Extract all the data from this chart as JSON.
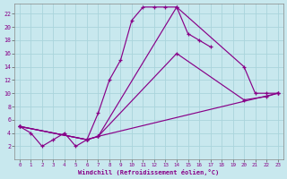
{
  "xlabel": "Windchill (Refroidissement éolien,°C)",
  "bg_color": "#c8e8ee",
  "grid_color": "#b0d8e0",
  "line_color": "#880088",
  "xlim": [
    -0.5,
    23.5
  ],
  "ylim": [
    0,
    23.5
  ],
  "yticks": [
    2,
    4,
    6,
    8,
    10,
    12,
    14,
    16,
    18,
    20,
    22
  ],
  "xticks": [
    0,
    1,
    2,
    3,
    4,
    5,
    6,
    7,
    8,
    9,
    10,
    11,
    12,
    13,
    14,
    15,
    16,
    17,
    18,
    19,
    20,
    21,
    22,
    23
  ],
  "series": [
    {
      "x": [
        0,
        1,
        2,
        3,
        4,
        5,
        6,
        7,
        8,
        9,
        10,
        11,
        12,
        13,
        14,
        15,
        16,
        17
      ],
      "y": [
        5,
        4,
        2,
        3,
        4,
        2,
        3,
        7,
        12,
        15,
        21,
        23,
        23,
        23,
        23,
        19,
        18,
        17
      ]
    },
    {
      "x": [
        0,
        6,
        7,
        14,
        20,
        21,
        22,
        23
      ],
      "y": [
        5,
        3,
        3.5,
        23,
        14,
        10,
        10,
        10
      ]
    },
    {
      "x": [
        0,
        6,
        7,
        14,
        20,
        22,
        23
      ],
      "y": [
        5,
        3,
        3.5,
        16,
        9,
        9.5,
        10
      ]
    },
    {
      "x": [
        0,
        6,
        7,
        23
      ],
      "y": [
        5,
        3,
        3.5,
        10
      ]
    }
  ]
}
